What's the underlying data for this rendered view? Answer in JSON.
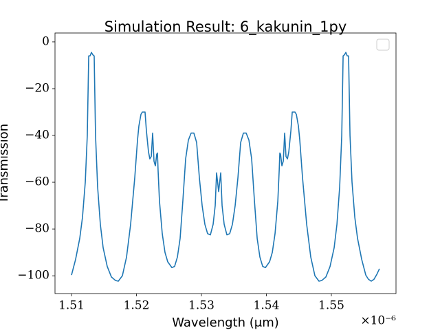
{
  "chart_data": {
    "type": "line",
    "title": "Simulation Result: 6_kakunin_1py",
    "x_label": "Wavelength (μm)",
    "y_label": "Transmission",
    "x_offset_label": "×10⁻⁶",
    "color": "#1f77b4",
    "legend": "upper right",
    "xlim": [
      1.50746,
      1.55995
    ],
    "ylim": [
      -107.6,
      3.8
    ],
    "xticks": [
      1.51,
      1.52,
      1.53,
      1.54,
      1.55
    ],
    "yticks": [
      0,
      {
        "value": -20,
        "label": "−20"
      },
      {
        "value": -40,
        "label": "−40"
      },
      {
        "value": -60,
        "label": "−60"
      },
      {
        "value": -80,
        "label": "−80"
      },
      {
        "value": -100,
        "label": "−100"
      }
    ],
    "x": [
      1.51,
      1.51063,
      1.51127,
      1.51169,
      1.51212,
      1.51243,
      1.51265,
      1.51286,
      1.51307,
      1.51328,
      1.51349,
      1.5137,
      1.51402,
      1.51444,
      1.51487,
      1.5155,
      1.51614,
      1.51677,
      1.5172,
      1.51783,
      1.51847,
      1.5191,
      1.51974,
      1.52016,
      1.52037,
      1.52069,
      1.5209,
      1.52132,
      1.52153,
      1.52185,
      1.52206,
      1.52228,
      1.52249,
      1.5227,
      1.52291,
      1.52312,
      1.52323,
      1.52333,
      1.52354,
      1.52397,
      1.52439,
      1.52481,
      1.52545,
      1.52587,
      1.5263,
      1.52672,
      1.52714,
      1.52757,
      1.52799,
      1.52841,
      1.52884,
      1.52926,
      1.52968,
      1.53011,
      1.53053,
      1.53095,
      1.53138,
      1.5318,
      1.53212,
      1.53233,
      1.53265,
      1.53297,
      1.53318,
      1.5335,
      1.53392,
      1.53435,
      1.53477,
      1.53519,
      1.53562,
      1.53604,
      1.53646,
      1.53689,
      1.53731,
      1.53773,
      1.53816,
      1.53858,
      1.539,
      1.53943,
      1.53985,
      1.54049,
      1.54091,
      1.54133,
      1.54176,
      1.54197,
      1.54207,
      1.54218,
      1.54239,
      1.5426,
      1.54281,
      1.54302,
      1.54324,
      1.54345,
      1.54377,
      1.54398,
      1.5444,
      1.54461,
      1.54493,
      1.54514,
      1.54556,
      1.5462,
      1.54683,
      1.54747,
      1.5481,
      1.54853,
      1.54916,
      1.5498,
      1.55043,
      1.55086,
      1.55128,
      1.5516,
      1.55181,
      1.55202,
      1.55223,
      1.55244,
      1.55265,
      1.55287,
      1.55318,
      1.55361,
      1.55403,
      1.55467,
      1.5553,
      1.55571,
      1.55614,
      1.55656,
      1.55698,
      1.5574
    ],
    "values": [
      -99.7,
      -93,
      -84,
      -75,
      -60,
      -40,
      -6,
      -6,
      -4.5,
      -5.5,
      -6,
      -40,
      -62,
      -78,
      -88,
      -96,
      -100.5,
      -102,
      -102.3,
      -100,
      -92,
      -78,
      -58,
      -42,
      -36,
      -31,
      -30,
      -30,
      -38,
      -47,
      -50,
      -49,
      -39,
      -51,
      -53,
      -48,
      -47.5,
      -55,
      -68,
      -82,
      -90,
      -94,
      -96.5,
      -96,
      -92,
      -84,
      -68,
      -50,
      -42,
      -39,
      -39,
      -43,
      -58,
      -70,
      -78,
      -82,
      -82.5,
      -78,
      -70,
      -56,
      -64,
      -56,
      -70,
      -78,
      -82.5,
      -82,
      -78,
      -70,
      -58,
      -43,
      -39,
      -39,
      -42,
      -50,
      -68,
      -84,
      -92,
      -96,
      -96.5,
      -94,
      -90,
      -82,
      -68,
      -55,
      -47.5,
      -48,
      -53,
      -51,
      -39,
      -49,
      -50,
      -47,
      -38,
      -30,
      -30,
      -31,
      -36,
      -42,
      -58,
      -78,
      -92,
      -100,
      -102.3,
      -102,
      -100.5,
      -96,
      -88,
      -78,
      -62,
      -40,
      -6,
      -5.5,
      -4.5,
      -6,
      -6,
      -40,
      -60,
      -75,
      -84,
      -93,
      -99.7,
      -101.5,
      -102.3,
      -101.5,
      -99.5,
      -97
    ]
  }
}
